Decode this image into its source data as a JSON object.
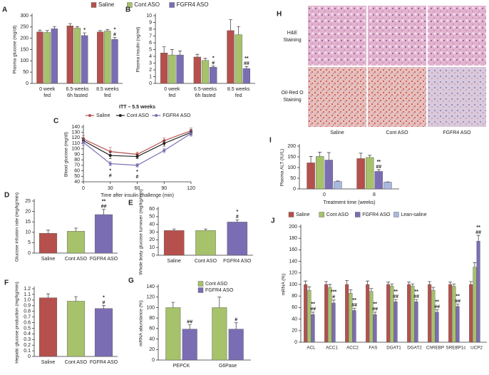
{
  "chart_data": [
    {
      "panel": "A",
      "type": "bar",
      "ylabel": "Plasma glucose (mg/dl)",
      "categories": [
        [
          "0 week",
          "fed"
        ],
        [
          "6.5-weeks",
          "6h fasted"
        ],
        [
          "8.5 weeks",
          "fed"
        ]
      ],
      "series": [
        {
          "name": "Saline",
          "color": "#b5504c",
          "values": [
            228,
            255,
            228
          ],
          "errors": [
            8,
            10,
            6
          ]
        },
        {
          "name": "Cont ASO",
          "color": "#a6c26a",
          "values": [
            226,
            245,
            232
          ],
          "errors": [
            8,
            6,
            6
          ]
        },
        {
          "name": "FGFR4 ASO",
          "color": "#7b6db3",
          "values": [
            242,
            212,
            195
          ],
          "errors": [
            10,
            12,
            8
          ],
          "significance": [
            null,
            [
              "*"
            ],
            [
              "*",
              "#"
            ]
          ]
        }
      ],
      "ylim": [
        0,
        300
      ],
      "yticks": [
        0,
        50,
        100,
        150,
        200,
        250,
        300
      ]
    },
    {
      "panel": "B",
      "type": "bar",
      "ylabel": "Plasma insulin (ng/ml)",
      "categories": [
        [
          "0 week",
          "fed"
        ],
        [
          "6.5-weeks",
          "6h fasted"
        ],
        [
          "8.5 weeks",
          "fed"
        ]
      ],
      "series": [
        {
          "color": "#b5504c",
          "values": [
            4.5,
            3.9,
            7.8
          ],
          "errors": [
            0.9,
            0.4,
            1.6
          ]
        },
        {
          "color": "#a6c26a",
          "values": [
            4.2,
            3.4,
            7.2
          ],
          "errors": [
            0.8,
            0.3,
            1.2
          ]
        },
        {
          "color": "#7b6db3",
          "values": [
            4.2,
            2.4,
            2.2
          ],
          "errors": [
            0.6,
            0.15,
            0.3
          ],
          "significance": [
            null,
            [
              "*",
              "#"
            ],
            [
              "**",
              "##"
            ]
          ]
        }
      ],
      "ylim": [
        0,
        10
      ],
      "yticks": [
        0,
        1,
        2,
        3,
        4,
        5,
        6,
        7,
        8,
        9,
        10
      ]
    },
    {
      "panel": "C",
      "type": "line",
      "title": "ITT – 5.5 weeks",
      "ylabel": "Blood glucose (mg/dl)",
      "xlabel": "Time after insulin challenge (min)",
      "x": [
        0,
        30,
        60,
        90,
        120
      ],
      "series": [
        {
          "name": "Saline",
          "color": "#b5504c",
          "values": [
            118,
            95,
            90,
            115,
            133
          ],
          "errors": [
            6,
            8,
            4,
            5,
            5
          ]
        },
        {
          "name": "Cont ASO",
          "color": "#222222",
          "values": [
            115,
            88,
            86,
            110,
            130
          ],
          "errors": [
            5,
            6,
            4,
            5,
            5
          ]
        },
        {
          "name": "FGFR4 ASO",
          "color": "#7b6db3",
          "values": [
            112,
            73,
            70,
            97,
            128
          ],
          "errors": [
            5,
            4,
            3,
            4,
            5
          ],
          "significance": [
            null,
            [
              "*",
              "#"
            ],
            [
              "*",
              "#"
            ],
            null,
            null
          ]
        }
      ],
      "xlim": [
        0,
        120
      ],
      "xticks": [
        0,
        30,
        60,
        90,
        120
      ],
      "ylim": [
        40,
        140
      ],
      "yticks": [
        40,
        50,
        60,
        70,
        80,
        90,
        100,
        110,
        120,
        130,
        140
      ]
    },
    {
      "panel": "D",
      "type": "bar",
      "ylabel": "Glucose infusion rate (mg/kg/min)",
      "categories": [
        [
          "Saline"
        ],
        [
          "Cont ASO"
        ],
        [
          "FGFR4 ASO"
        ]
      ],
      "series": [
        {
          "colors": [
            "#b5504c",
            "#a6c26a",
            "#7b6db3"
          ],
          "values": [
            9.5,
            10.5,
            18.5
          ],
          "errors": [
            1.5,
            1.5,
            2.5
          ],
          "significance": [
            null,
            null,
            [
              "**",
              "##"
            ]
          ]
        }
      ],
      "ylim": [
        0,
        25
      ],
      "yticks": [
        0,
        5,
        10,
        15,
        20,
        25
      ]
    },
    {
      "panel": "E",
      "type": "bar",
      "ylabel": "Whole body glucose turnover (mg/kg/min)",
      "categories": [
        [
          "Saline"
        ],
        [
          "Cont ASO"
        ],
        [
          "FGFR4 ASO"
        ]
      ],
      "series": [
        {
          "colors": [
            "#b5504c",
            "#a6c26a",
            "#7b6db3"
          ],
          "values": [
            32,
            32,
            43
          ],
          "errors": [
            2,
            2,
            3
          ],
          "significance": [
            null,
            null,
            [
              "*",
              "#"
            ]
          ]
        }
      ],
      "ylim": [
        0,
        60
      ],
      "yticks": [
        0,
        10,
        20,
        30,
        40,
        50,
        60
      ]
    },
    {
      "panel": "F",
      "type": "bar",
      "ylabel": "Hepatic glucose production (mg/kg/min)",
      "categories": [
        [
          "Saline"
        ],
        [
          "Cont ASO"
        ],
        [
          "FGFR4 ASO"
        ]
      ],
      "series": [
        {
          "colors": [
            "#b5504c",
            "#a6c26a",
            "#7b6db3"
          ],
          "values": [
            1.04,
            0.98,
            0.85
          ],
          "errors": [
            0.07,
            0.08,
            0.05
          ],
          "significance": [
            null,
            null,
            [
              "*",
              "#"
            ]
          ]
        }
      ],
      "ylim": [
        0,
        1.2
      ],
      "yticks": [
        0,
        0.1,
        0.2,
        0.3,
        0.4,
        0.5,
        0.6,
        0.7,
        0.8,
        0.9,
        {
          "value": 1,
          "label": "1.0"
        },
        1.1,
        1.2
      ]
    },
    {
      "panel": "G",
      "type": "bar",
      "ylabel": "mRNA abundance (%)",
      "categories": [
        [
          "PEPCK"
        ],
        [
          "G6Pase"
        ]
      ],
      "series": [
        {
          "name": "Cont ASO",
          "color": "#a6c26a",
          "values": [
            100,
            100
          ],
          "errors": [
            10,
            20
          ]
        },
        {
          "name": "FGFR4 ASO",
          "color": "#7b6db3",
          "values": [
            59,
            59
          ],
          "errors": [
            8,
            12
          ],
          "significance": [
            [
              "##"
            ],
            [
              "#"
            ]
          ]
        }
      ],
      "ylim": [
        0,
        140
      ],
      "yticks": [
        0,
        20,
        40,
        60,
        80,
        100,
        120,
        140
      ]
    },
    {
      "panel": "I",
      "type": "bar",
      "ylabel": "Plasma ALT (IU/L)",
      "xlabel": "Treatment time (weeks)",
      "categories": [
        [
          "0"
        ],
        [
          "8"
        ]
      ],
      "series": [
        {
          "color": "#b5504c",
          "values": [
            122,
            142
          ],
          "errors": [
            30,
            25
          ]
        },
        {
          "color": "#a6c26a",
          "values": [
            152,
            147
          ],
          "errors": [
            20,
            10
          ]
        },
        {
          "color": "#7b6db3",
          "values": [
            135,
            82
          ],
          "errors": [
            35,
            8
          ],
          "significance": [
            null,
            [
              "**",
              "##"
            ]
          ]
        },
        {
          "color": "#a9b8de",
          "values": [
            35,
            32
          ],
          "errors": [
            2,
            1
          ]
        }
      ],
      "ylim": [
        0,
        200
      ],
      "yticks": [
        0,
        50,
        100,
        150,
        200
      ]
    },
    {
      "panel": "J",
      "type": "bar",
      "ylabel": "mRNA (%)",
      "categories": [
        [
          "ACL"
        ],
        [
          "ACC1"
        ],
        [
          "ACC2"
        ],
        [
          "FAS"
        ],
        [
          "DGAT1"
        ],
        [
          "DGAT2"
        ],
        [
          "ChREBP"
        ],
        [
          "SREBP1c"
        ],
        [
          "UCP2"
        ]
      ],
      "series": [
        {
          "name": "Saline",
          "color": "#b5504c",
          "values": [
            100,
            100,
            100,
            100,
            100,
            100,
            100,
            100,
            100
          ],
          "errors": [
            6,
            5,
            7,
            6,
            4,
            4,
            5,
            4,
            5
          ]
        },
        {
          "name": "Cont ASO",
          "color": "#a6c26a",
          "values": [
            90,
            95,
            85,
            88,
            97,
            97,
            90,
            97,
            130
          ],
          "errors": [
            6,
            5,
            6,
            5,
            4,
            4,
            5,
            4,
            8
          ]
        },
        {
          "name": "FGFR4 ASO",
          "color": "#7b6db3",
          "values": [
            48,
            68,
            55,
            48,
            70,
            70,
            52,
            62,
            175
          ],
          "errors": [
            4,
            5,
            4,
            4,
            4,
            4,
            4,
            4,
            10
          ],
          "significance": [
            [
              "**",
              "##"
            ],
            [
              "***",
              "#"
            ],
            [
              "**",
              "##"
            ],
            [
              "**",
              "##"
            ],
            [
              "**",
              "##"
            ],
            [
              "**",
              "##"
            ],
            [
              "**",
              "##"
            ],
            [
              "**",
              "##"
            ],
            [
              "**",
              "##"
            ]
          ]
        },
        {
          "name": "Lean-saline",
          "color": "#a9b8de",
          "values": [
            null,
            null,
            null,
            null,
            null,
            null,
            null,
            null,
            null
          ]
        }
      ],
      "ylim": [
        0,
        200
      ],
      "yticks": [
        0,
        20,
        40,
        60,
        80,
        100,
        120,
        140,
        160,
        180,
        200
      ]
    }
  ],
  "histology": {
    "panel": "H",
    "rows": [
      [
        "H&E",
        "Staining"
      ],
      [
        "Oil-Red O",
        "Staining"
      ]
    ],
    "columns": [
      "Saline",
      "Cont ASO",
      "FGFR4 ASO"
    ]
  }
}
